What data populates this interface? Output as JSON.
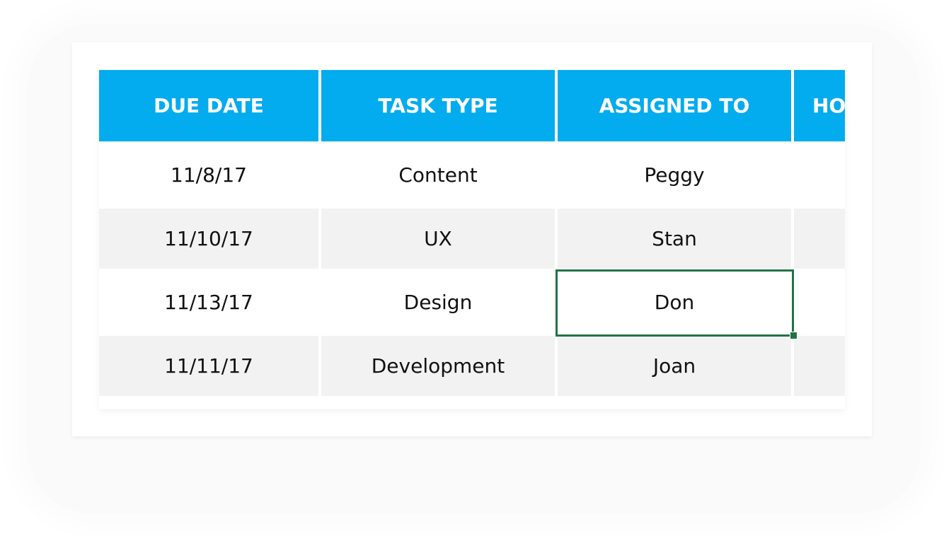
{
  "table": {
    "headers": [
      "DUE DATE",
      "TASK TYPE",
      "ASSIGNED TO",
      "HO"
    ],
    "rows": [
      [
        "11/8/17",
        "Content",
        "Peggy",
        ""
      ],
      [
        "11/10/17",
        "UX",
        "Stan",
        ""
      ],
      [
        "11/13/17",
        "Design",
        "Don",
        ""
      ],
      [
        "11/11/17",
        "Development",
        "Joan",
        ""
      ]
    ],
    "selected_cell": "Don"
  },
  "colors": {
    "header_bg": "#03acee",
    "stripe": "#f2f2f2",
    "selection": "#217346"
  }
}
